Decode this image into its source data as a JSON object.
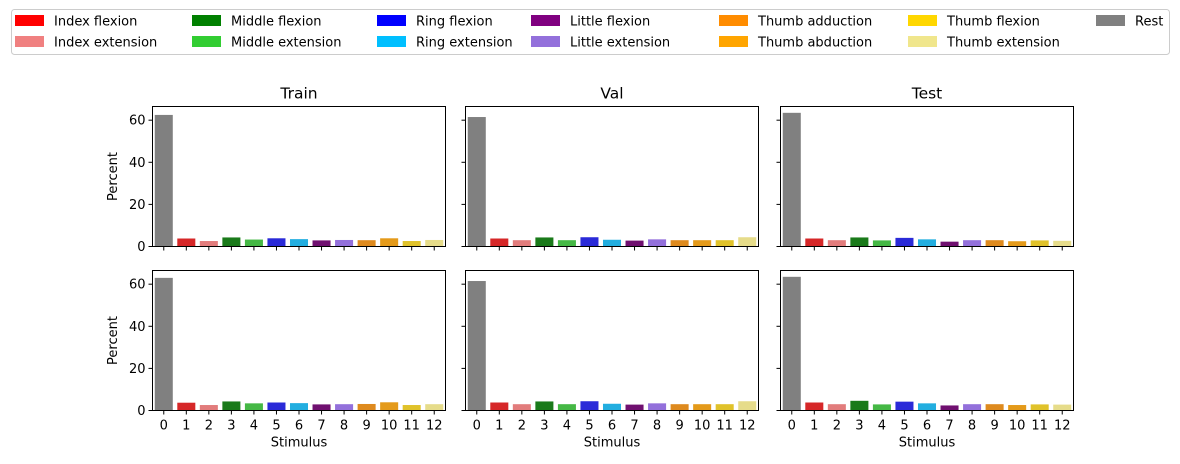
{
  "legend": [
    {
      "label": "Index flexion",
      "color": "#ff0000"
    },
    {
      "label": "Index extension",
      "color": "#f08080"
    },
    {
      "label": "Middle flexion",
      "color": "#008000"
    },
    {
      "label": "Middle extension",
      "color": "#32cd32"
    },
    {
      "label": "Ring flexion",
      "color": "#0000ff"
    },
    {
      "label": "Ring extension",
      "color": "#00bfff"
    },
    {
      "label": "Little flexion",
      "color": "#800080"
    },
    {
      "label": "Little extension",
      "color": "#9370db"
    },
    {
      "label": "Thumb adduction",
      "color": "#ff8c00"
    },
    {
      "label": "Thumb abduction",
      "color": "#ffa500"
    },
    {
      "label": "Thumb flexion",
      "color": "#ffd700"
    },
    {
      "label": "Thumb extension",
      "color": "#f0e68c"
    },
    {
      "label": "Rest",
      "color": "#808080"
    }
  ],
  "bar_colors": [
    "#808080",
    "#d62728",
    "#e27c7c",
    "#1a7a1a",
    "#45b845",
    "#2a2ad8",
    "#22aee0",
    "#701070",
    "#9370db",
    "#de8a1e",
    "#e49a1a",
    "#e0c22a",
    "#e6dc8a"
  ],
  "chart_data": [
    {
      "type": "bar",
      "title": "Train",
      "xlabel": "",
      "ylabel": "Percent",
      "ylim": [
        0,
        66.5
      ],
      "yticks": [
        0,
        20,
        40,
        60
      ],
      "categories": [
        "0",
        "1",
        "2",
        "3",
        "4",
        "5",
        "6",
        "7",
        "8",
        "9",
        "10",
        "11",
        "12"
      ],
      "values": [
        62.5,
        3.8,
        2.6,
        4.3,
        3.3,
        3.9,
        3.5,
        2.9,
        3.1,
        3.0,
        3.9,
        2.6,
        3.1
      ]
    },
    {
      "type": "bar",
      "title": "Val",
      "xlabel": "",
      "ylabel": "",
      "ylim": [
        0,
        66.5
      ],
      "yticks": [
        0,
        20,
        40,
        60
      ],
      "categories": [
        "0",
        "1",
        "2",
        "3",
        "4",
        "5",
        "6",
        "7",
        "8",
        "9",
        "10",
        "11",
        "12"
      ],
      "values": [
        61.5,
        3.8,
        3.0,
        4.3,
        3.0,
        4.4,
        3.2,
        2.8,
        3.4,
        3.0,
        3.0,
        3.0,
        4.4
      ]
    },
    {
      "type": "bar",
      "title": "Test",
      "xlabel": "",
      "ylabel": "",
      "ylim": [
        0,
        66.5
      ],
      "yticks": [
        0,
        20,
        40,
        60
      ],
      "categories": [
        "0",
        "1",
        "2",
        "3",
        "4",
        "5",
        "6",
        "7",
        "8",
        "9",
        "10",
        "11",
        "12"
      ],
      "values": [
        63.5,
        3.8,
        3.0,
        4.3,
        2.9,
        4.1,
        3.4,
        2.3,
        3.0,
        3.0,
        2.5,
        2.9,
        2.7
      ]
    },
    {
      "type": "bar",
      "title": "",
      "xlabel": "Stimulus",
      "ylabel": "Percent",
      "ylim": [
        0,
        66.5
      ],
      "yticks": [
        0,
        20,
        40,
        60
      ],
      "categories": [
        "0",
        "1",
        "2",
        "3",
        "4",
        "5",
        "6",
        "7",
        "8",
        "9",
        "10",
        "11",
        "12"
      ],
      "values": [
        63.0,
        3.7,
        2.6,
        4.3,
        3.4,
        3.8,
        3.5,
        2.9,
        3.0,
        3.1,
        3.9,
        2.6,
        3.0
      ]
    },
    {
      "type": "bar",
      "title": "",
      "xlabel": "Stimulus",
      "ylabel": "",
      "ylim": [
        0,
        66.5
      ],
      "yticks": [
        0,
        20,
        40,
        60
      ],
      "categories": [
        "0",
        "1",
        "2",
        "3",
        "4",
        "5",
        "6",
        "7",
        "8",
        "9",
        "10",
        "11",
        "12"
      ],
      "values": [
        61.5,
        3.8,
        3.0,
        4.3,
        3.0,
        4.4,
        3.2,
        2.8,
        3.4,
        3.0,
        3.0,
        3.0,
        4.4
      ]
    },
    {
      "type": "bar",
      "title": "",
      "xlabel": "Stimulus",
      "ylabel": "",
      "ylim": [
        0,
        66.5
      ],
      "yticks": [
        0,
        20,
        40,
        60
      ],
      "categories": [
        "0",
        "1",
        "2",
        "3",
        "4",
        "5",
        "6",
        "7",
        "8",
        "9",
        "10",
        "11",
        "12"
      ],
      "values": [
        63.5,
        3.8,
        3.0,
        4.6,
        2.9,
        4.2,
        3.4,
        2.4,
        3.0,
        3.0,
        2.6,
        2.9,
        2.8
      ]
    }
  ]
}
